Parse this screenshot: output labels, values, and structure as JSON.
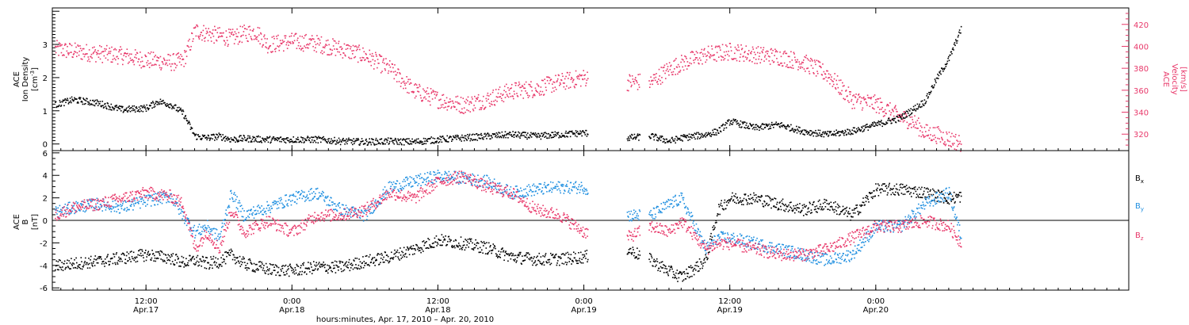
{
  "colors": {
    "black": "#000000",
    "red": "#e8386a",
    "blue": "#1f8fe0"
  },
  "xlabel": "hours:minutes, Apr. 17, 2010 – Apr. 20, 2010",
  "x_ticks": [
    {
      "line1": "12:00",
      "line2": "Apr.17",
      "hours": 12
    },
    {
      "line1": "0:00",
      "line2": "Apr.18",
      "hours": 24
    },
    {
      "line1": "12:00",
      "line2": "Apr.18",
      "hours": 36
    },
    {
      "line1": "0:00",
      "line2": "Apr.19",
      "hours": 48
    },
    {
      "line1": "12:00",
      "line2": "Apr.19",
      "hours": 60
    },
    {
      "line1": "0:00",
      "line2": "Apr.20",
      "hours": 72
    }
  ],
  "top_panel": {
    "left_label_line1": "ACE",
    "left_label_line2": "Ion Density",
    "left_label_line3": "[cm",
    "left_label_sup": "-3",
    "left_label_end": "]",
    "right_label_line1": "ACE",
    "right_label_line2": "Velocity",
    "right_label_line3": "[km/s]",
    "left_ticks": [
      "0",
      "1",
      "2",
      "3"
    ],
    "right_ticks": [
      "320",
      "340",
      "360",
      "380",
      "400",
      "420"
    ]
  },
  "bottom_panel": {
    "left_label_line1": "ACE",
    "left_label_line2": "B",
    "left_label_line3": "[nT]",
    "ticks": [
      "-6",
      "-4",
      "-2",
      "0",
      "2",
      "4",
      "6"
    ],
    "legend": [
      {
        "base": "B",
        "sub": "x"
      },
      {
        "base": "B",
        "sub": "y"
      },
      {
        "base": "B",
        "sub": "z"
      }
    ]
  },
  "chart_data": [
    {
      "type": "scatter",
      "title": "",
      "xlabel": "hours:minutes, Apr. 17, 2010 – Apr. 20, 2010",
      "x_units": "hours since Apr.17 0:00",
      "xlim": [
        4.3,
        92.8
      ],
      "ylim_left": [
        -0.2,
        4.1
      ],
      "ylim_right": [
        305,
        435
      ],
      "grid": false,
      "data_gaps_hours": [
        [
          48.3,
          51.5
        ],
        [
          52.6,
          53.3
        ]
      ],
      "series": [
        {
          "axis": "left",
          "color": "black",
          "x": [
            4.5,
            6,
            8,
            10,
            12,
            13,
            14,
            15,
            15.5,
            16,
            17,
            18,
            19,
            20,
            22,
            24,
            26,
            28,
            30,
            32,
            34,
            36,
            38,
            40,
            42,
            44,
            46,
            48,
            51.5,
            53.5,
            55,
            56,
            58,
            59,
            60,
            62,
            64,
            66,
            68,
            70,
            72,
            74,
            76,
            77,
            78,
            79
          ],
          "y": [
            1.2,
            1.35,
            1.25,
            1.05,
            1.1,
            1.3,
            1.2,
            0.95,
            0.6,
            0.25,
            0.2,
            0.25,
            0.15,
            0.18,
            0.15,
            0.15,
            0.15,
            0.1,
            0.08,
            0.1,
            0.08,
            0.15,
            0.2,
            0.25,
            0.3,
            0.25,
            0.3,
            0.35,
            0.2,
            0.25,
            0.1,
            0.2,
            0.3,
            0.4,
            0.7,
            0.5,
            0.6,
            0.4,
            0.3,
            0.4,
            0.6,
            0.8,
            1.3,
            2.0,
            2.6,
            3.5
          ]
        },
        {
          "axis": "right",
          "color": "red",
          "x": [
            4.5,
            6,
            8,
            10,
            12,
            14,
            15,
            15.5,
            16,
            17,
            18,
            19,
            20,
            21,
            22,
            24,
            26,
            28,
            30,
            32,
            34,
            36,
            38,
            40,
            42,
            44,
            46,
            48,
            51.5,
            53.5,
            55,
            56,
            58,
            59,
            60,
            62,
            64,
            66,
            68,
            70,
            72,
            73,
            74,
            75,
            76,
            77,
            78,
            79
          ],
          "y": [
            398,
            396,
            394,
            392,
            388,
            386,
            387,
            400,
            415,
            412,
            410,
            408,
            412,
            414,
            402,
            405,
            403,
            398,
            392,
            380,
            360,
            352,
            347,
            352,
            360,
            362,
            368,
            372,
            368,
            368,
            380,
            385,
            393,
            394,
            396,
            393,
            391,
            386,
            375,
            352,
            348,
            342,
            336,
            332,
            322,
            320,
            316,
            312
          ]
        }
      ]
    },
    {
      "type": "scatter",
      "title": "",
      "ylabel": "ACE B [nT]",
      "x_units": "hours since Apr.17 0:00",
      "xlim": [
        4.3,
        92.8
      ],
      "ylim": [
        -6.2,
        6.2
      ],
      "grid": false,
      "legend_placement": "right",
      "series": [
        {
          "name": "Bx",
          "color": "black",
          "x": [
            4.5,
            6,
            8,
            10,
            12,
            14,
            15,
            16,
            17,
            18,
            19,
            20,
            22,
            24,
            26,
            28,
            30,
            32,
            34,
            36,
            38,
            40,
            42,
            44,
            46,
            48,
            51.5,
            53.5,
            55,
            56,
            58,
            59,
            60,
            62,
            64,
            66,
            68,
            70,
            72,
            74,
            76,
            78,
            79
          ],
          "y": [
            -4.0,
            -3.8,
            -3.6,
            -3.3,
            -3.0,
            -3.3,
            -3.7,
            -3.5,
            -3.8,
            -3.6,
            -3.0,
            -3.8,
            -4.3,
            -4.4,
            -4.1,
            -4.1,
            -3.6,
            -3.2,
            -2.5,
            -1.7,
            -2.0,
            -2.4,
            -3.2,
            -3.4,
            -3.4,
            -3.2,
            -2.5,
            -3.5,
            -4.5,
            -5.0,
            -3.5,
            1.0,
            2.0,
            2.0,
            1.5,
            1.0,
            1.5,
            0.5,
            2.8,
            2.8,
            2.5,
            2.0,
            2.2
          ]
        },
        {
          "name": "By",
          "color": "blue",
          "x": [
            4.5,
            6,
            8,
            10,
            12,
            14,
            15,
            16,
            17,
            18,
            19,
            20,
            22,
            24,
            26,
            28,
            30,
            32,
            34,
            36,
            38,
            40,
            42,
            44,
            46,
            48,
            51.5,
            53.5,
            55,
            56,
            58,
            59,
            60,
            62,
            64,
            66,
            68,
            70,
            72,
            74,
            76,
            78,
            79
          ],
          "y": [
            0.8,
            1.2,
            1.5,
            1.2,
            1.8,
            2.2,
            0.5,
            -1.0,
            -0.5,
            -1.5,
            2.5,
            0.5,
            1.2,
            2.0,
            2.5,
            1.0,
            0.5,
            3.0,
            3.5,
            4.0,
            3.8,
            3.5,
            2.5,
            2.8,
            3.0,
            3.0,
            0.5,
            0.5,
            1.5,
            2.0,
            -2.5,
            -1.5,
            -1.5,
            -2.0,
            -2.5,
            -3.0,
            -3.5,
            -3.0,
            -0.5,
            -0.5,
            1.5,
            2.5,
            -1.5
          ]
        },
        {
          "name": "Bz",
          "color": "red",
          "x": [
            4.5,
            6,
            8,
            10,
            12,
            14,
            15,
            16,
            17,
            18,
            19,
            20,
            22,
            24,
            26,
            28,
            30,
            32,
            34,
            36,
            38,
            40,
            42,
            44,
            46,
            48,
            51.5,
            53.5,
            55,
            56,
            58,
            59,
            60,
            62,
            64,
            66,
            68,
            70,
            72,
            74,
            76,
            78,
            79
          ],
          "y": [
            0.5,
            1.2,
            1.5,
            2.0,
            2.5,
            2.2,
            1.5,
            -2.5,
            -1.0,
            -2.5,
            1.0,
            -1.0,
            0.0,
            -1.0,
            0.5,
            0.5,
            1.0,
            2.5,
            2.0,
            3.5,
            4.0,
            3.0,
            2.5,
            1.0,
            0.5,
            -1.0,
            -1.5,
            -0.5,
            -1.0,
            0.0,
            -2.5,
            -2.0,
            -2.0,
            -2.5,
            -3.0,
            -3.0,
            -2.5,
            -1.5,
            -0.5,
            -0.5,
            0.0,
            -0.5,
            -2.0
          ]
        }
      ]
    }
  ]
}
